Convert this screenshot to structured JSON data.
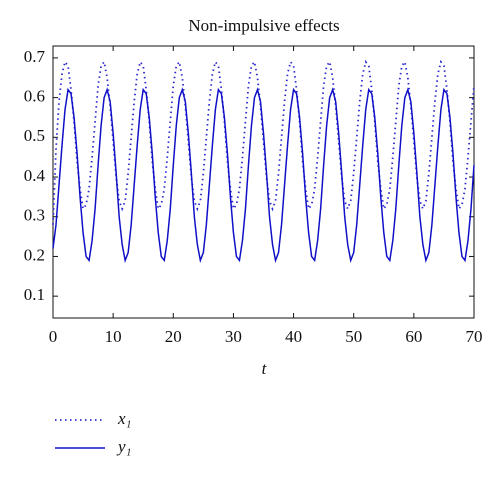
{
  "chart_data": {
    "type": "line",
    "title": "Non-impulsive effects",
    "x_label": "t",
    "x": [
      0,
      0.5,
      1,
      1.5,
      2,
      2.5,
      3,
      3.5,
      4,
      4.5,
      5,
      5.5,
      6,
      6.5,
      7,
      7.5,
      8,
      8.5,
      9,
      9.5,
      10,
      10.5,
      11,
      11.5,
      12,
      12.5,
      13,
      13.5,
      14,
      14.5,
      15,
      15.5,
      16,
      16.5,
      17,
      17.5,
      18,
      18.5,
      19,
      19.5,
      20,
      20.5,
      21,
      21.5,
      22,
      22.5,
      23,
      23.5,
      24,
      24.5,
      25,
      25.5,
      26,
      26.5,
      27,
      27.5,
      28,
      28.5,
      29,
      29.5,
      30,
      30.5,
      31,
      31.5,
      32,
      32.5,
      33,
      33.5,
      34,
      34.5,
      35,
      35.5,
      36,
      36.5,
      37,
      37.5,
      38,
      38.5,
      39,
      39.5,
      40,
      40.5,
      41,
      41.5,
      42,
      42.5,
      43,
      43.5,
      44,
      44.5,
      45,
      45.5,
      46,
      46.5,
      47,
      47.5,
      48,
      48.5,
      49,
      49.5,
      50,
      50.5,
      51,
      51.5,
      52,
      52.5,
      53,
      53.5,
      54,
      54.5,
      55,
      55.5,
      56,
      56.5,
      57,
      57.5,
      58,
      58.5,
      59,
      59.5,
      60,
      60.5,
      61,
      61.5,
      62,
      62.5,
      63,
      63.5,
      64,
      64.5,
      65,
      65.5,
      66,
      66.5,
      67,
      67.5,
      68,
      68.5,
      69,
      69.5,
      70
    ],
    "series": [
      {
        "name": "x₁",
        "color": "#2a2ad0",
        "style": "dotted",
        "values": [
          0.28,
          0.47,
          0.59,
          0.66,
          0.69,
          0.68,
          0.62,
          0.54,
          0.44,
          0.37,
          0.32,
          0.33,
          0.37,
          0.45,
          0.54,
          0.63,
          0.68,
          0.69,
          0.65,
          0.58,
          0.49,
          0.4,
          0.34,
          0.32,
          0.34,
          0.41,
          0.5,
          0.59,
          0.66,
          0.69,
          0.68,
          0.62,
          0.54,
          0.44,
          0.37,
          0.32,
          0.33,
          0.37,
          0.45,
          0.54,
          0.63,
          0.68,
          0.69,
          0.65,
          0.58,
          0.49,
          0.4,
          0.34,
          0.32,
          0.34,
          0.41,
          0.5,
          0.59,
          0.66,
          0.69,
          0.68,
          0.62,
          0.54,
          0.44,
          0.37,
          0.32,
          0.33,
          0.37,
          0.45,
          0.54,
          0.63,
          0.68,
          0.69,
          0.65,
          0.58,
          0.49,
          0.4,
          0.34,
          0.32,
          0.34,
          0.41,
          0.5,
          0.59,
          0.66,
          0.69,
          0.68,
          0.62,
          0.54,
          0.44,
          0.37,
          0.32,
          0.33,
          0.37,
          0.45,
          0.54,
          0.63,
          0.68,
          0.69,
          0.65,
          0.58,
          0.49,
          0.4,
          0.34,
          0.32,
          0.34,
          0.41,
          0.5,
          0.59,
          0.66,
          0.69,
          0.68,
          0.62,
          0.54,
          0.44,
          0.37,
          0.32,
          0.33,
          0.37,
          0.45,
          0.54,
          0.63,
          0.68,
          0.69,
          0.65,
          0.58,
          0.49,
          0.4,
          0.34,
          0.32,
          0.34,
          0.41,
          0.5,
          0.59,
          0.66,
          0.69,
          0.68,
          0.62,
          0.54,
          0.44,
          0.37,
          0.32,
          0.33,
          0.37,
          0.45,
          0.54,
          0.63
        ]
      },
      {
        "name": "y₁",
        "color": "#1010c8",
        "style": "solid",
        "values": [
          0.22,
          0.28,
          0.38,
          0.48,
          0.57,
          0.62,
          0.61,
          0.55,
          0.46,
          0.35,
          0.26,
          0.2,
          0.19,
          0.24,
          0.32,
          0.43,
          0.53,
          0.6,
          0.62,
          0.59,
          0.51,
          0.41,
          0.3,
          0.23,
          0.19,
          0.21,
          0.28,
          0.38,
          0.48,
          0.57,
          0.62,
          0.61,
          0.55,
          0.46,
          0.35,
          0.26,
          0.2,
          0.19,
          0.24,
          0.32,
          0.43,
          0.53,
          0.6,
          0.62,
          0.59,
          0.51,
          0.41,
          0.3,
          0.23,
          0.19,
          0.21,
          0.28,
          0.38,
          0.48,
          0.57,
          0.62,
          0.61,
          0.55,
          0.46,
          0.35,
          0.26,
          0.2,
          0.19,
          0.24,
          0.32,
          0.43,
          0.53,
          0.6,
          0.62,
          0.59,
          0.51,
          0.41,
          0.3,
          0.23,
          0.19,
          0.21,
          0.28,
          0.38,
          0.48,
          0.57,
          0.62,
          0.61,
          0.55,
          0.46,
          0.35,
          0.26,
          0.2,
          0.19,
          0.24,
          0.32,
          0.43,
          0.53,
          0.6,
          0.62,
          0.59,
          0.51,
          0.41,
          0.3,
          0.23,
          0.19,
          0.21,
          0.28,
          0.38,
          0.48,
          0.57,
          0.62,
          0.61,
          0.55,
          0.46,
          0.35,
          0.26,
          0.2,
          0.19,
          0.24,
          0.32,
          0.43,
          0.53,
          0.6,
          0.62,
          0.59,
          0.51,
          0.41,
          0.3,
          0.23,
          0.19,
          0.21,
          0.28,
          0.38,
          0.48,
          0.57,
          0.62,
          0.61,
          0.55,
          0.46,
          0.35,
          0.26,
          0.2,
          0.19,
          0.24,
          0.32,
          0.43
        ]
      }
    ],
    "xlim": [
      0,
      70
    ],
    "xticks": [
      0,
      10,
      20,
      30,
      40,
      50,
      60,
      70
    ],
    "ylim": [
      0.045,
      0.73
    ],
    "yticks": [
      0.1,
      0.2,
      0.3,
      0.4,
      0.5,
      0.6,
      0.7
    ],
    "grid": false,
    "legend": "below-left"
  }
}
